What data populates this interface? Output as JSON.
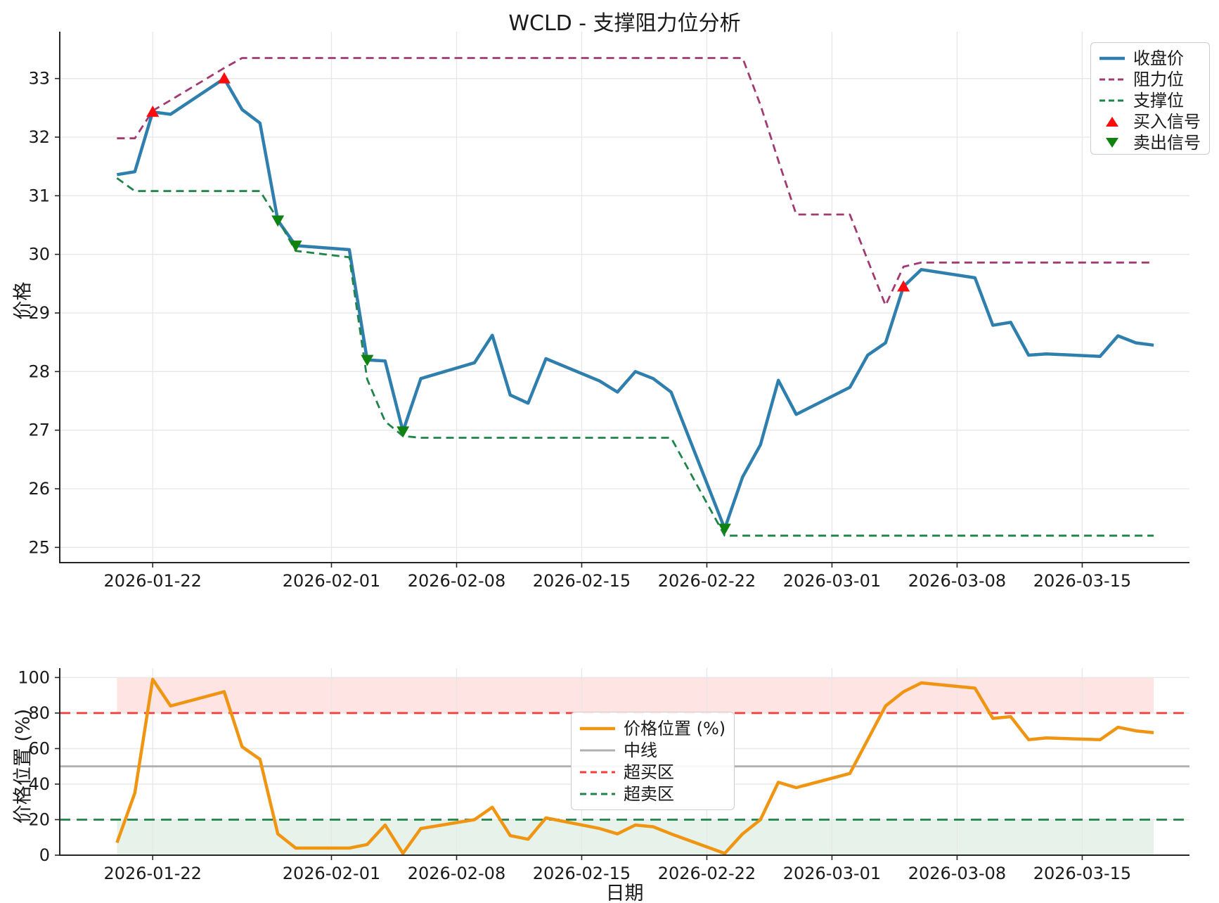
{
  "figure_title": "WCLD - 支撑阻力位分析",
  "colors": {
    "close": "#2e7fae",
    "resistance": "#a23a72",
    "support": "#1e8449",
    "buy_marker": "#fb0d0d",
    "sell_marker": "#0f820f",
    "position": "#ef9511",
    "midline": "#b0b0b0",
    "overbought": "#f93b3b",
    "oversold": "#1e8449",
    "band_overbought": "rgba(255,90,90,0.16)",
    "band_oversold": "rgba(70,160,90,0.13)",
    "grid": "#e7e7e7",
    "spine": "#262626",
    "tick_text": "#1a1a1a"
  },
  "chart_data": [
    {
      "type": "line",
      "title": "WCLD - 支撑阻力位分析",
      "ylabel": "价格",
      "ylim": [
        24.74,
        33.8
      ],
      "yticks": [
        25,
        26,
        27,
        28,
        29,
        30,
        31,
        32,
        33
      ],
      "xticks": [
        "2026-01-22",
        "2026-02-01",
        "2026-02-08",
        "2026-02-15",
        "2026-02-22",
        "2026-03-01",
        "2026-03-08",
        "2026-03-15"
      ],
      "grid": true,
      "legend_position": "upper right",
      "x": [
        "2026-01-20",
        "2026-01-21",
        "2026-01-22",
        "2026-01-23",
        "2026-01-26",
        "2026-01-27",
        "2026-01-28",
        "2026-01-29",
        "2026-01-30",
        "2026-02-02",
        "2026-02-03",
        "2026-02-04",
        "2026-02-05",
        "2026-02-06",
        "2026-02-09",
        "2026-02-10",
        "2026-02-11",
        "2026-02-12",
        "2026-02-13",
        "2026-02-16",
        "2026-02-17",
        "2026-02-18",
        "2026-02-19",
        "2026-02-20",
        "2026-02-23",
        "2026-02-24",
        "2026-02-25",
        "2026-02-26",
        "2026-02-27",
        "2026-03-02",
        "2026-03-03",
        "2026-03-04",
        "2026-03-05",
        "2026-03-06",
        "2026-03-09",
        "2026-03-10",
        "2026-03-11",
        "2026-03-12",
        "2026-03-13",
        "2026-03-16",
        "2026-03-17",
        "2026-03-18",
        "2026-03-19"
      ],
      "series": [
        {
          "name": "收盘价",
          "style": "solid",
          "values": [
            31.36,
            31.41,
            32.43,
            32.39,
            33.0,
            32.47,
            32.24,
            30.58,
            30.15,
            30.08,
            28.2,
            28.18,
            26.98,
            27.88,
            28.15,
            28.62,
            27.6,
            27.46,
            28.22,
            27.84,
            27.65,
            28.0,
            27.88,
            27.65,
            25.32,
            26.2,
            26.75,
            27.85,
            27.27,
            27.73,
            28.28,
            28.49,
            29.45,
            29.74,
            29.6,
            28.79,
            28.84,
            28.28,
            28.3,
            28.26,
            28.61,
            28.49,
            28.45
          ]
        },
        {
          "name": "阻力位",
          "style": "dashed",
          "values": [
            31.98,
            31.98,
            32.45,
            32.63,
            33.18,
            33.35,
            33.35,
            33.35,
            33.35,
            33.35,
            33.35,
            33.35,
            33.35,
            33.35,
            33.35,
            33.35,
            33.35,
            33.35,
            33.35,
            33.35,
            33.35,
            33.35,
            33.35,
            33.35,
            33.35,
            33.35,
            32.55,
            31.6,
            30.68,
            30.68,
            29.9,
            29.13,
            29.79,
            29.86,
            29.86,
            29.86,
            29.86,
            29.86,
            29.86,
            29.86,
            29.86,
            29.86,
            29.86
          ]
        },
        {
          "name": "支撑位",
          "style": "dashed",
          "values": [
            31.3,
            31.08,
            31.08,
            31.08,
            31.08,
            31.08,
            31.08,
            30.6,
            30.06,
            29.95,
            27.87,
            27.15,
            26.9,
            26.87,
            26.87,
            26.87,
            26.87,
            26.87,
            26.87,
            26.87,
            26.87,
            26.87,
            26.87,
            26.87,
            25.2,
            25.2,
            25.2,
            25.2,
            25.2,
            25.2,
            25.2,
            25.2,
            25.2,
            25.2,
            25.2,
            25.2,
            25.2,
            25.2,
            25.2,
            25.2,
            25.2,
            25.2,
            25.2
          ]
        }
      ],
      "buy_signals": [
        {
          "date": "2026-01-22",
          "price": 32.43
        },
        {
          "date": "2026-01-26",
          "price": 33.0
        },
        {
          "date": "2026-03-05",
          "price": 29.45
        }
      ],
      "sell_signals": [
        {
          "date": "2026-01-29",
          "price": 30.58
        },
        {
          "date": "2026-01-30",
          "price": 30.15
        },
        {
          "date": "2026-02-03",
          "price": 28.2
        },
        {
          "date": "2026-02-05",
          "price": 26.98
        },
        {
          "date": "2026-02-23",
          "price": 25.32
        }
      ],
      "legend": [
        "收盘价",
        "阻力位",
        "支撑位",
        "买入信号",
        "卖出信号"
      ]
    },
    {
      "type": "line",
      "ylabel": "价格位置 (%)",
      "xlabel": "日期",
      "ylim": [
        0,
        105.3
      ],
      "yticks": [
        0,
        20,
        40,
        60,
        80,
        100
      ],
      "xticks": [
        "2026-01-22",
        "2026-02-01",
        "2026-02-08",
        "2026-02-15",
        "2026-02-22",
        "2026-03-01",
        "2026-03-08",
        "2026-03-15"
      ],
      "grid": true,
      "hlines": [
        {
          "name": "中线",
          "value": 50,
          "style": "solid"
        },
        {
          "name": "超买区",
          "value": 80,
          "style": "dashed"
        },
        {
          "name": "超卖区",
          "value": 20,
          "style": "dashed"
        }
      ],
      "bands": [
        {
          "name": "overbought-band",
          "from": 80,
          "to": 100
        },
        {
          "name": "oversold-band",
          "from": 0,
          "to": 20
        }
      ],
      "x": [
        "2026-01-20",
        "2026-01-21",
        "2026-01-22",
        "2026-01-23",
        "2026-01-26",
        "2026-01-27",
        "2026-01-28",
        "2026-01-29",
        "2026-01-30",
        "2026-02-02",
        "2026-02-03",
        "2026-02-04",
        "2026-02-05",
        "2026-02-06",
        "2026-02-09",
        "2026-02-10",
        "2026-02-11",
        "2026-02-12",
        "2026-02-13",
        "2026-02-16",
        "2026-02-17",
        "2026-02-18",
        "2026-02-19",
        "2026-02-20",
        "2026-02-23",
        "2026-02-24",
        "2026-02-25",
        "2026-02-26",
        "2026-02-27",
        "2026-03-02",
        "2026-03-03",
        "2026-03-04",
        "2026-03-05",
        "2026-03-06",
        "2026-03-09",
        "2026-03-10",
        "2026-03-11",
        "2026-03-12",
        "2026-03-13",
        "2026-03-16",
        "2026-03-17",
        "2026-03-18",
        "2026-03-19"
      ],
      "series": [
        {
          "name": "价格位置 (%)",
          "style": "solid",
          "values": [
            7,
            35,
            99,
            84,
            92,
            61,
            54,
            12,
            4,
            4,
            6,
            17,
            1,
            15,
            20,
            27,
            11,
            9,
            21,
            15,
            12,
            17,
            16,
            12,
            1,
            12,
            20,
            41,
            38,
            46,
            65,
            84,
            92,
            97,
            94,
            77,
            78,
            65,
            66,
            65,
            72,
            70,
            69
          ]
        }
      ],
      "legend": [
        "价格位置 (%)",
        "中线",
        "超买区",
        "超卖区"
      ]
    }
  ]
}
